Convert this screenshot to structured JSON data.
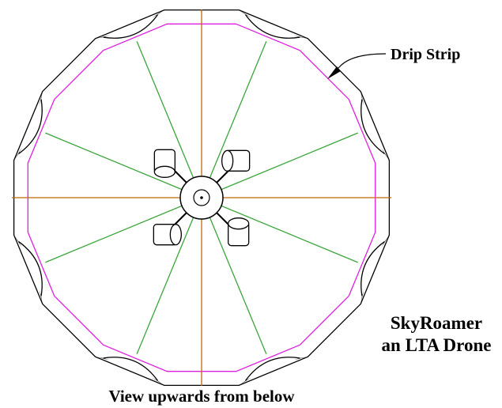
{
  "labels": {
    "drip_strip": "Drip Strip",
    "name_line1": "SkyRoamer",
    "name_line2": "an LTA Drone",
    "caption": "View upwards from below"
  }
}
